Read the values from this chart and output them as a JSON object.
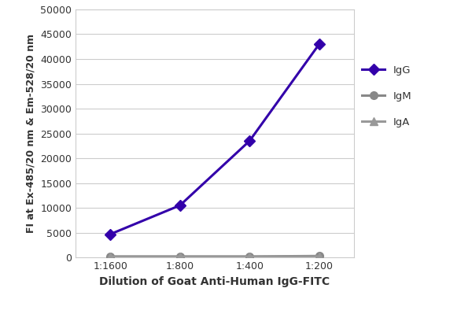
{
  "x_labels": [
    "1:1600",
    "1:800",
    "1:400",
    "1:200"
  ],
  "x_positions": [
    1,
    2,
    3,
    4
  ],
  "IgG_values": [
    4700,
    10500,
    23500,
    43000
  ],
  "IgM_values": [
    200,
    200,
    200,
    300
  ],
  "IgA_values": [
    150,
    150,
    150,
    200
  ],
  "IgG_color": "#3300AA",
  "IgM_color": "#888888",
  "IgA_color": "#999999",
  "IgG_marker": "D",
  "IgM_marker": "o",
  "IgA_marker": "^",
  "xlabel": "Dilution of Goat Anti-Human IgG-FITC",
  "ylabel": "FI at Ex-485/20 nm & Em-528/20 nm",
  "ylim": [
    0,
    50000
  ],
  "yticks": [
    0,
    5000,
    10000,
    15000,
    20000,
    25000,
    30000,
    35000,
    40000,
    45000,
    50000
  ],
  "background_color": "#ffffff",
  "outer_border_color": "#cccccc",
  "grid_color": "#cccccc",
  "legend_labels": [
    "IgG",
    "IgM",
    "IgA"
  ],
  "linewidth": 2.2,
  "markersize": 7
}
